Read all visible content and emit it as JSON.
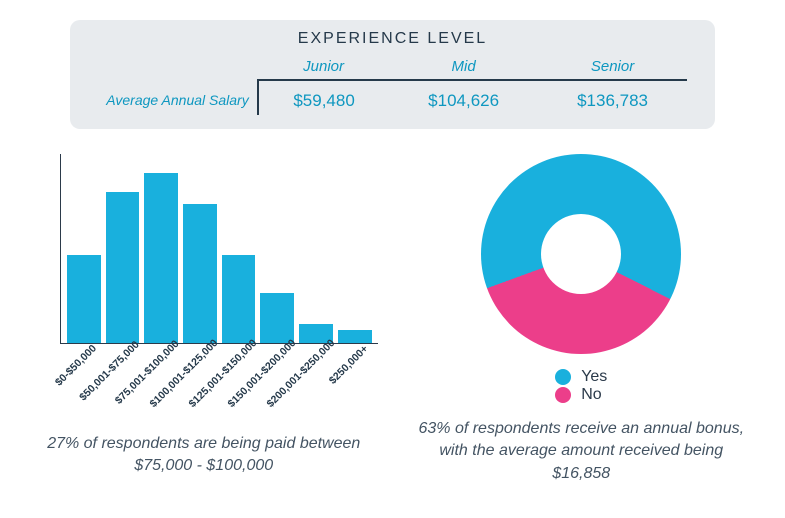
{
  "experience_table": {
    "title": "EXPERIENCE LEVEL",
    "row_label": "Average Annual Salary",
    "columns": [
      "Junior",
      "Mid",
      "Senior"
    ],
    "values": [
      "$59,480",
      "$104,626",
      "$136,783"
    ],
    "background_color": "#e8ebee",
    "accent_color": "#0e97c0",
    "border_color": "#25394a",
    "title_fontsize": 16,
    "header_fontsize": 15,
    "value_fontsize": 17
  },
  "salary_histogram": {
    "type": "bar",
    "categories": [
      "$0-$50,000",
      "$50,001-$75,000",
      "$75,001-$100,000",
      "$100,001-$125,000",
      "$125,001-$150,000",
      "$150,001-$200,000",
      "$200,001-$250,000",
      "$250,000+"
    ],
    "values": [
      14,
      24,
      27,
      22,
      14,
      8,
      3,
      2
    ],
    "ylim": [
      0,
      30
    ],
    "bar_color": "#19b0dd",
    "axis_color": "#2b3a4a",
    "xlabel_rotation_deg": -45,
    "xlabel_fontsize": 10.5,
    "xlabel_fontweight": 600,
    "caption": "27% of respondents are being paid between $75,000 - $100,000"
  },
  "bonus_donut": {
    "type": "donut",
    "slices": [
      {
        "label": "Yes",
        "value": 63,
        "color": "#19b0dd"
      },
      {
        "label": "No",
        "value": 37,
        "color": "#ec3e8a"
      }
    ],
    "start_angle_deg": 250,
    "inner_radius_pct": 40,
    "background_color": "#ffffff",
    "legend_fontsize": 16,
    "caption": "63% of respondents receive an annual bonus, with the average amount received being $16,858"
  },
  "caption_style": {
    "font_style": "italic",
    "fontsize": 16,
    "color": "#445463"
  }
}
